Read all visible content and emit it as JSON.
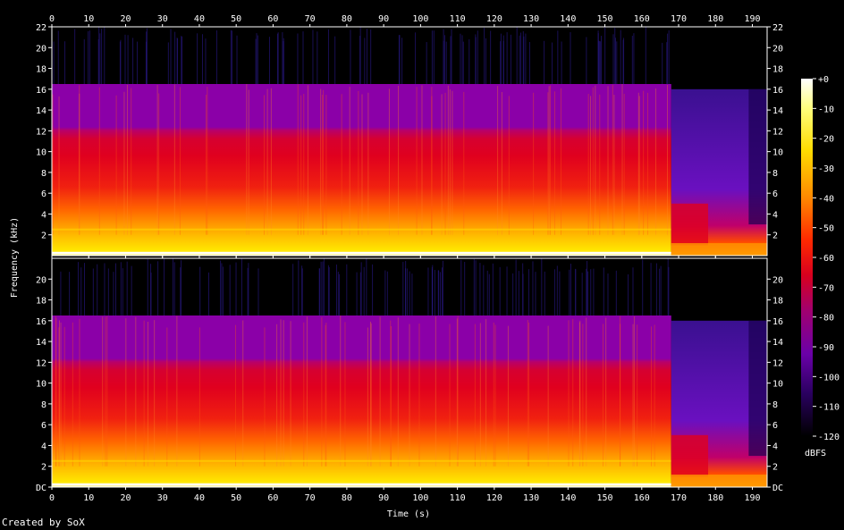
{
  "chart_data": {
    "type": "heatmap",
    "subtype": "spectrogram",
    "channels": 2,
    "xlabel": "Time (s)",
    "ylabel": "Frequency (kHz)",
    "xlim": [
      0,
      194
    ],
    "ylim": [
      0,
      22
    ],
    "x_ticks": [
      "0",
      "10",
      "20",
      "30",
      "40",
      "50",
      "60",
      "70",
      "80",
      "90",
      "100",
      "110",
      "120",
      "130",
      "140",
      "150",
      "160",
      "170",
      "180",
      "190"
    ],
    "y_ticks_left_top": [
      "2",
      "4",
      "6",
      "8",
      "10",
      "12",
      "14",
      "16",
      "18",
      "20",
      "22"
    ],
    "y_ticks_left_bottom": [
      "DC",
      "2",
      "4",
      "6",
      "8",
      "10",
      "12",
      "14",
      "16",
      "18",
      "20"
    ],
    "y_ticks_right": [
      "DC",
      "2",
      "4",
      "6",
      "8",
      "10",
      "12",
      "14",
      "16",
      "18",
      "20",
      "22"
    ],
    "colorbar": {
      "label": "dBFS",
      "range": [
        -120,
        0
      ],
      "ticks": [
        "+0",
        "-10",
        "-20",
        "-30",
        "-40",
        "-50",
        "-60",
        "-70",
        "-80",
        "-90",
        "-100",
        "-110",
        "-120"
      ]
    },
    "colors": {
      "background": "#000000",
      "level_0_dB": "#ffffff",
      "level_minus20_dB": "#ffe000",
      "level_minus40_dB": "#ff6000",
      "level_minus55_dB": "#e0001e",
      "level_minus80_dB": "#8b00a8",
      "level_minus100_dB": "#2a006a",
      "level_minus120_dB": "#000000"
    },
    "observed": {
      "lowpass_cutoff_khz": 16.5,
      "cutoff_end_time_s": 168,
      "tail_ceiling_khz": 16
    }
  },
  "footer": {
    "credit": "Created by SoX"
  }
}
